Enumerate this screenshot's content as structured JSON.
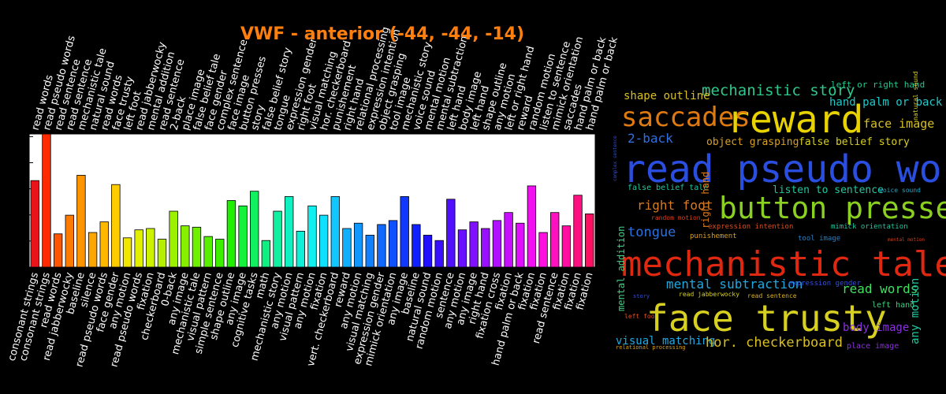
{
  "chart_data": {
    "type": "bar",
    "title": "VWF - anterior (-44, -44, -14)",
    "categories": [
      "consonant strings",
      "consonant strings",
      "read words",
      "read jabberwocky",
      "baseline",
      "silence",
      "read pseudo words",
      "face gender",
      "any motion",
      "read pseudo words",
      "fixation",
      "checkerboard",
      "0-back",
      "any image",
      "mechanistic tale",
      "visual pattern",
      "simple sentence",
      "shape outline",
      "any image",
      "cognitive tasks",
      "math",
      "mechanistic story",
      "any motion",
      "visual pattern",
      "any motion",
      "fixation",
      "vert. checkerboard",
      "reward",
      "any motion",
      "visual matching",
      "expression gender",
      "mimick orientation",
      "any image",
      "baseline",
      "natural sound",
      "random motion",
      "sentence",
      "any motion",
      "any image",
      "right hand",
      "fixation cross",
      "fixation",
      "hand palm or back",
      "fixation",
      "fixation",
      "read sentence",
      "fixation",
      "fixation",
      "fixation"
    ],
    "top_labels": [
      "read words",
      "read pseudo words",
      "read sentence",
      "read sentence",
      "mechanistic tale",
      "natural sound",
      "read words",
      "face trusty",
      "left foot",
      "read jabberwocky",
      "mental addition",
      "read sentence",
      "2-back",
      "place image",
      "false belief tale",
      "face gender",
      "complex sentence",
      "face image",
      "button presses",
      "story",
      "false belief story",
      "tongue",
      "expression gender",
      "right foot",
      "visual matching",
      "hor. checkerboard",
      "punishement",
      "right hand",
      "relational processing",
      "expression intention",
      "object grasping",
      "tool image",
      "mechanistic story",
      "voice sound",
      "mental motion",
      "mental subtraction",
      "left hand",
      "body image",
      "left hand",
      "shape outline",
      "any motion",
      "left or right hand",
      "reward",
      "random motion",
      "listen to sentence",
      "mimick orientation",
      "saccades",
      "hand palm or back",
      "hand palm or back"
    ],
    "values": [
      0.65,
      1.0,
      0.25,
      0.39,
      0.69,
      0.26,
      0.34,
      0.62,
      0.22,
      0.28,
      0.29,
      0.21,
      0.42,
      0.31,
      0.3,
      0.23,
      0.21,
      0.5,
      0.46,
      0.57,
      0.2,
      0.42,
      0.53,
      0.27,
      0.46,
      0.39,
      0.53,
      0.29,
      0.33,
      0.24,
      0.32,
      0.35,
      0.53,
      0.32,
      0.24,
      0.2,
      0.51,
      0.28,
      0.34,
      0.29,
      0.35,
      0.41,
      0.33,
      0.61,
      0.26,
      0.41,
      0.31,
      0.54,
      0.4
    ],
    "colors": [
      "#e8141a",
      "#ff2a00",
      "#ff5500",
      "#ff7a00",
      "#ff9400",
      "#ffa500",
      "#ffb800",
      "#ffcc00",
      "#f0e600",
      "#e0f000",
      "#ccf200",
      "#b6ef00",
      "#9cf000",
      "#86f000",
      "#6ef000",
      "#58f000",
      "#3cf000",
      "#20f000",
      "#15f23a",
      "#10f060",
      "#10f080",
      "#10f0a0",
      "#10f0c0",
      "#10f0d8",
      "#10f0f0",
      "#10e0ff",
      "#10c8ff",
      "#10b0ff",
      "#1098ff",
      "#1080ff",
      "#1068ff",
      "#1050ff",
      "#1038ff",
      "#1020ff",
      "#2010ff",
      "#3810ff",
      "#5010ff",
      "#6810ff",
      "#8010ff",
      "#9810ff",
      "#b010ff",
      "#c810ff",
      "#e010ff",
      "#f010f0",
      "#ff10e0",
      "#ff10c0",
      "#ff10a0",
      "#ff1080",
      "#ff1060"
    ],
    "ylim": [
      0,
      1.0
    ],
    "yticks_count": 6
  },
  "wordcloud": {
    "words": [
      {
        "text": "reward",
        "color": "#e8d200"
      },
      {
        "text": "saccades",
        "color": "#e07a10"
      },
      {
        "text": "mechanistic story",
        "color": "#2ec88a"
      },
      {
        "text": "shape outline",
        "color": "#d8c020"
      },
      {
        "text": "left or right hand",
        "color": "#20c890"
      },
      {
        "text": "hand palm or back",
        "color": "#20c8c8"
      },
      {
        "text": "face image",
        "color": "#d8c020"
      },
      {
        "text": "2-back",
        "color": "#3070e0"
      },
      {
        "text": "object grasping",
        "color": "#d8a020"
      },
      {
        "text": "false belief story",
        "color": "#d8d020"
      },
      {
        "text": "read pseudo words",
        "color": "#2a4ee0"
      },
      {
        "text": "false belief tale",
        "color": "#20c8a0"
      },
      {
        "text": "listen to sentence",
        "color": "#20c8a0"
      },
      {
        "text": "voice sound",
        "color": "#20a8c8"
      },
      {
        "text": "right foot",
        "color": "#d87a20"
      },
      {
        "text": "button presses",
        "color": "#8ad020"
      },
      {
        "text": "random motion",
        "color": "#d84020"
      },
      {
        "text": "expression intention",
        "color": "#d85020"
      },
      {
        "text": "mimick orientation",
        "color": "#20c8a0"
      },
      {
        "text": "tongue",
        "color": "#2a70e0"
      },
      {
        "text": "punishement",
        "color": "#d8a020"
      },
      {
        "text": "tool image",
        "color": "#2080c8"
      },
      {
        "text": "mental motion",
        "color": "#d84020"
      },
      {
        "text": "mechanistic tale",
        "color": "#e02810"
      },
      {
        "text": "mental subtraction",
        "color": "#20a8e0"
      },
      {
        "text": "expression gender",
        "color": "#3050e0"
      },
      {
        "text": "read words",
        "color": "#40e060"
      },
      {
        "text": "story",
        "color": "#3050e0"
      },
      {
        "text": "read jabberwocky",
        "color": "#d8d020"
      },
      {
        "text": "read sentence",
        "color": "#d8b020"
      },
      {
        "text": "left hand",
        "color": "#40d080"
      },
      {
        "text": "left foot",
        "color": "#e05020"
      },
      {
        "text": "face trusty",
        "color": "#d8d020"
      },
      {
        "text": "body image",
        "color": "#8a30e0"
      },
      {
        "text": "visual matching",
        "color": "#20a8e0"
      },
      {
        "text": "hor. checkerboard",
        "color": "#d8c020"
      },
      {
        "text": "place image",
        "color": "#8a30e0"
      },
      {
        "text": "relational processing",
        "color": "#d8a020"
      },
      {
        "text": "mental addition",
        "color": "#40d080"
      },
      {
        "text": "right hand",
        "color": "#d87a20"
      },
      {
        "text": "any motion",
        "color": "#20c8a0"
      },
      {
        "text": "natural sound",
        "color": "#d8d020"
      },
      {
        "text": "complex sentence",
        "color": "#3050e0"
      }
    ]
  }
}
